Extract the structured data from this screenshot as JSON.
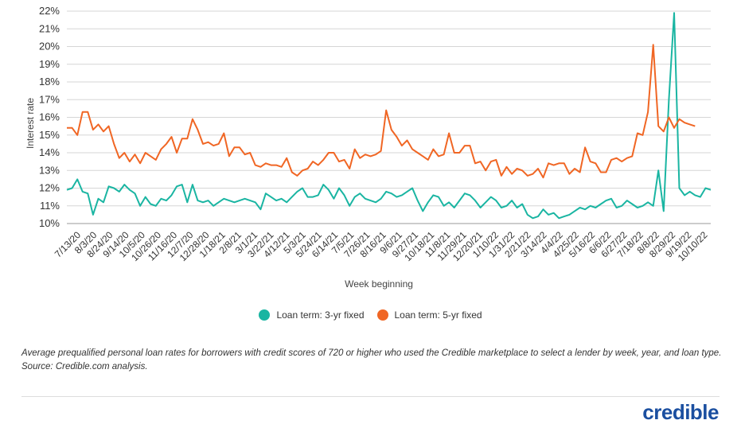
{
  "chart_data": {
    "type": "line",
    "title": "",
    "xlabel": "Week beginning",
    "ylabel": "Interest rate",
    "ylim": [
      10,
      22
    ],
    "yticks": [
      "10%",
      "11%",
      "12%",
      "13%",
      "14%",
      "15%",
      "16%",
      "17%",
      "18%",
      "19%",
      "20%",
      "21%",
      "22%"
    ],
    "x_tick_labels": [
      "7/13/20",
      "8/3/20",
      "8/24/20",
      "9/14/20",
      "10/5/20",
      "10/26/20",
      "11/16/20",
      "12/7/20",
      "12/28/20",
      "1/18/21",
      "2/8/21",
      "3/1/21",
      "3/22/21",
      "4/12/21",
      "5/3/21",
      "5/24/21",
      "6/14/21",
      "7/5/21",
      "7/26/21",
      "8/16/21",
      "9/6/21",
      "9/27/21",
      "10/18/21",
      "11/8/21",
      "11/29/21",
      "12/20/21",
      "1/10/22",
      "1/31/22",
      "2/21/22",
      "3/14/22",
      "4/4/22",
      "4/25/22",
      "5/16/22",
      "6/6/22",
      "6/27/22",
      "7/18/22",
      "8/8/22",
      "8/29/22",
      "9/19/22",
      "10/10/22"
    ],
    "grid": true,
    "legend_position": "bottom",
    "series": [
      {
        "name": "Loan term: 3-yr fixed",
        "color": "#1ab5a2",
        "values": [
          11.9,
          12.0,
          12.5,
          11.8,
          11.7,
          10.5,
          11.4,
          11.2,
          12.1,
          12.0,
          11.8,
          12.2,
          11.9,
          11.7,
          11.0,
          11.5,
          11.1,
          11.0,
          11.4,
          11.3,
          11.6,
          12.1,
          12.2,
          11.2,
          12.2,
          11.3,
          11.2,
          11.3,
          11.0,
          11.2,
          11.4,
          11.3,
          11.2,
          11.3,
          11.4,
          11.3,
          11.2,
          10.8,
          11.7,
          11.5,
          11.3,
          11.4,
          11.2,
          11.5,
          11.8,
          12.0,
          11.5,
          11.5,
          11.6,
          12.2,
          11.9,
          11.4,
          12.0,
          11.6,
          11.0,
          11.5,
          11.7,
          11.4,
          11.3,
          11.2,
          11.4,
          11.8,
          11.7,
          11.5,
          11.6,
          11.8,
          12.0,
          11.3,
          10.7,
          11.2,
          11.6,
          11.5,
          11.0,
          11.2,
          10.9,
          11.3,
          11.7,
          11.6,
          11.3,
          10.9,
          11.2,
          11.5,
          11.3,
          10.9,
          11.0,
          11.3,
          10.9,
          11.1,
          10.5,
          10.3,
          10.4,
          10.8,
          10.5,
          10.6,
          10.3,
          10.4,
          10.5,
          10.7,
          10.9,
          10.8,
          11.0,
          10.9,
          11.1,
          11.3,
          11.4,
          10.9,
          11.0,
          11.3,
          11.1,
          10.9,
          11.0,
          11.2,
          11.0,
          13.0,
          10.7,
          17.0,
          21.9,
          12.0,
          11.6,
          11.8,
          11.6,
          11.5,
          12.0,
          11.9
        ]
      },
      {
        "name": "Loan term: 5-yr fixed",
        "color": "#f06624",
        "values": [
          15.4,
          15.4,
          15.0,
          16.3,
          16.3,
          15.3,
          15.6,
          15.2,
          15.5,
          14.5,
          13.7,
          14.0,
          13.5,
          13.9,
          13.4,
          14.0,
          13.8,
          13.6,
          14.2,
          14.5,
          14.9,
          14.0,
          14.8,
          14.8,
          15.9,
          15.3,
          14.5,
          14.6,
          14.4,
          14.5,
          15.1,
          13.8,
          14.3,
          14.3,
          13.9,
          14.0,
          13.3,
          13.2,
          13.4,
          13.3,
          13.3,
          13.2,
          13.7,
          12.9,
          12.7,
          13.0,
          13.1,
          13.5,
          13.3,
          13.6,
          14.0,
          14.0,
          13.5,
          13.6,
          13.1,
          14.2,
          13.7,
          13.9,
          13.8,
          13.9,
          14.1,
          16.4,
          15.3,
          14.9,
          14.4,
          14.7,
          14.2,
          14.0,
          13.8,
          13.6,
          14.2,
          13.8,
          13.9,
          15.1,
          14.0,
          14.0,
          14.4,
          14.4,
          13.4,
          13.5,
          13.0,
          13.5,
          13.6,
          12.7,
          13.2,
          12.8,
          13.1,
          13.0,
          12.7,
          12.8,
          13.1,
          12.6,
          13.4,
          13.3,
          13.4,
          13.4,
          12.8,
          13.1,
          12.9,
          14.3,
          13.5,
          13.4,
          12.9,
          12.9,
          13.6,
          13.7,
          13.5,
          13.7,
          13.8,
          15.1,
          15.0,
          16.3,
          20.1,
          15.5,
          15.2,
          16.0,
          15.4,
          15.9,
          15.7,
          15.6,
          15.5
        ]
      }
    ]
  },
  "legend": {
    "item_3yr": "Loan term: 3-yr fixed",
    "item_5yr": "Loan term: 5-yr fixed"
  },
  "caption": "Average prequalified personal loan rates for borrowers with credit scores of 720 or higher who used the Credible marketplace to select a lender by week, year, and loan type. Source: Credible.com analysis.",
  "brand": "credible"
}
